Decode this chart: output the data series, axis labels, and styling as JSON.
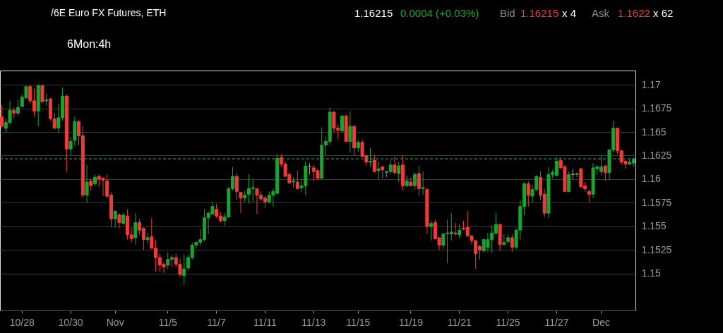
{
  "chart_data": {
    "type": "candlestick",
    "title": "/6E Euro FX Futures, ETH",
    "annotations": [
      "1.16215",
      "0.0004 (+0.03%)",
      "Bid",
      "1.16215",
      "x 4",
      "Ask",
      "1.1622",
      "x 62",
      "6Mon:4h"
    ],
    "categories": [
      null,
      null,
      null,
      null,
      null,
      "10/28",
      null,
      null,
      null,
      null,
      null,
      null,
      null,
      null,
      null,
      null,
      null,
      "10/30",
      null,
      null,
      null,
      null,
      null,
      null,
      null,
      null,
      null,
      null,
      "Nov",
      null,
      null,
      null,
      null,
      null,
      null,
      null,
      null,
      null,
      null,
      null,
      null,
      "11/5",
      null,
      null,
      null,
      null,
      null,
      null,
      null,
      null,
      null,
      null,
      null,
      "11/7",
      null,
      null,
      null,
      null,
      null,
      null,
      null,
      null,
      null,
      null,
      null,
      "11/11",
      null,
      null,
      null,
      null,
      null,
      null,
      null,
      null,
      null,
      null,
      null,
      "11/13",
      null,
      null,
      null,
      null,
      null,
      null,
      null,
      null,
      null,
      null,
      "11/15",
      null,
      null,
      null,
      null,
      null,
      null,
      null,
      null,
      null,
      null,
      null,
      null,
      "11/19",
      null,
      null,
      null,
      null,
      null,
      null,
      null,
      null,
      null,
      null,
      null,
      "11/21",
      null,
      null,
      null,
      null,
      null,
      null,
      null,
      null,
      null,
      null,
      null,
      "11/25",
      null,
      null,
      null,
      null,
      null,
      null,
      null,
      null,
      null,
      null,
      null,
      "11/27",
      null,
      null,
      null,
      null,
      null,
      null,
      null,
      null,
      null,
      null,
      "Dec",
      null,
      null,
      null,
      null,
      null,
      null,
      null,
      null
    ],
    "ohlc": [
      [
        1.1666,
        1.1678,
        1.1655,
        1.1656
      ],
      [
        1.1654,
        1.1664,
        1.1649,
        1.166
      ],
      [
        1.166,
        1.1683,
        1.1658,
        1.1673
      ],
      [
        1.1673,
        1.1676,
        1.1664,
        1.167
      ],
      [
        1.167,
        1.1684,
        1.1667,
        1.1676
      ],
      [
        1.1677,
        1.169,
        1.1676,
        1.1687
      ],
      [
        1.1686,
        1.1699,
        1.1685,
        1.1698
      ],
      [
        1.1698,
        1.17,
        1.168,
        1.1683
      ],
      [
        1.1683,
        1.1696,
        1.1666,
        1.1672
      ],
      [
        1.1672,
        1.17,
        1.1656,
        1.1699
      ],
      [
        1.1699,
        1.17,
        1.1682,
        1.1682
      ],
      [
        1.1683,
        1.1691,
        1.1678,
        1.1684
      ],
      [
        1.1685,
        1.1686,
        1.1662,
        1.1664
      ],
      [
        1.1664,
        1.167,
        1.1653,
        1.1654
      ],
      [
        1.1654,
        1.168,
        1.1649,
        1.1665
      ],
      [
        1.1665,
        1.1697,
        1.1662,
        1.1688
      ],
      [
        1.1688,
        1.169,
        1.1608,
        1.1632
      ],
      [
        1.1632,
        1.1644,
        1.1625,
        1.164
      ],
      [
        1.1641,
        1.1666,
        1.1635,
        1.1661
      ],
      [
        1.1661,
        1.1663,
        1.1636,
        1.1646
      ],
      [
        1.1646,
        1.1657,
        1.158,
        1.1583
      ],
      [
        1.1583,
        1.1615,
        1.1575,
        1.1597
      ],
      [
        1.1598,
        1.1601,
        1.1588,
        1.1593
      ],
      [
        1.1595,
        1.1605,
        1.1593,
        1.1602
      ],
      [
        1.1603,
        1.1605,
        1.1592,
        1.16
      ],
      [
        1.1601,
        1.1602,
        1.1582,
        1.1599
      ],
      [
        1.1598,
        1.1605,
        1.158,
        1.1582
      ],
      [
        1.1583,
        1.1586,
        1.1549,
        1.1558
      ],
      [
        1.1558,
        1.1567,
        1.1549,
        1.1566
      ],
      [
        1.1562,
        1.1564,
        1.1548,
        1.1554
      ],
      [
        1.1553,
        1.1564,
        1.1552,
        1.1562
      ],
      [
        1.1561,
        1.1568,
        1.1536,
        1.1541
      ],
      [
        1.1541,
        1.1549,
        1.1533,
        1.1537
      ],
      [
        1.1538,
        1.1564,
        1.1531,
        1.1554
      ],
      [
        1.1554,
        1.1558,
        1.1541,
        1.1546
      ],
      [
        1.1548,
        1.1549,
        1.1525,
        1.1536
      ],
      [
        1.1536,
        1.1543,
        1.1532,
        1.1538
      ],
      [
        1.1539,
        1.1559,
        1.1526,
        1.1527
      ],
      [
        1.1527,
        1.1536,
        1.1502,
        1.1517
      ],
      [
        1.1517,
        1.1521,
        1.1502,
        1.1509
      ],
      [
        1.151,
        1.1512,
        1.1501,
        1.1507
      ],
      [
        1.1509,
        1.1523,
        1.1505,
        1.1515
      ],
      [
        1.1515,
        1.152,
        1.1507,
        1.1517
      ],
      [
        1.1517,
        1.1521,
        1.1507,
        1.151
      ],
      [
        1.151,
        1.1516,
        1.1496,
        1.1499
      ],
      [
        1.1498,
        1.152,
        1.1488,
        1.1505
      ],
      [
        1.1506,
        1.152,
        1.1504,
        1.1517
      ],
      [
        1.1517,
        1.1533,
        1.1515,
        1.153
      ],
      [
        1.153,
        1.1534,
        1.1527,
        1.1533
      ],
      [
        1.1533,
        1.1547,
        1.153,
        1.1536
      ],
      [
        1.1536,
        1.1568,
        1.1534,
        1.1559
      ],
      [
        1.1559,
        1.1566,
        1.1542,
        1.1564
      ],
      [
        1.1563,
        1.1576,
        1.1563,
        1.1571
      ],
      [
        1.1568,
        1.1574,
        1.1559,
        1.1561
      ],
      [
        1.1561,
        1.1565,
        1.1554,
        1.1556
      ],
      [
        1.1556,
        1.1564,
        1.1551,
        1.156
      ],
      [
        1.156,
        1.1592,
        1.1559,
        1.159
      ],
      [
        1.159,
        1.1613,
        1.1588,
        1.1603
      ],
      [
        1.1603,
        1.1606,
        1.1578,
        1.1587
      ],
      [
        1.1586,
        1.1586,
        1.1564,
        1.158
      ],
      [
        1.158,
        1.1588,
        1.1576,
        1.1583
      ],
      [
        1.1584,
        1.1605,
        1.1574,
        1.159
      ],
      [
        1.159,
        1.16,
        1.1576,
        1.1591
      ],
      [
        1.159,
        1.159,
        1.1563,
        1.1583
      ],
      [
        1.1583,
        1.1587,
        1.1577,
        1.1579
      ],
      [
        1.158,
        1.1582,
        1.1569,
        1.1576
      ],
      [
        1.1576,
        1.1587,
        1.1574,
        1.1583
      ],
      [
        1.1583,
        1.159,
        1.1571,
        1.1587
      ],
      [
        1.1585,
        1.1627,
        1.1584,
        1.1622
      ],
      [
        1.1623,
        1.1627,
        1.1613,
        1.1616
      ],
      [
        1.1616,
        1.1618,
        1.1602,
        1.1603
      ],
      [
        1.1605,
        1.1607,
        1.1595,
        1.1596
      ],
      [
        1.1597,
        1.1602,
        1.1591,
        1.1598
      ],
      [
        1.1597,
        1.1609,
        1.1589,
        1.159
      ],
      [
        1.1591,
        1.1601,
        1.1586,
        1.1593
      ],
      [
        1.1593,
        1.1619,
        1.1583,
        1.1614
      ],
      [
        1.1613,
        1.1617,
        1.1605,
        1.1613
      ],
      [
        1.1612,
        1.1615,
        1.1598,
        1.1608
      ],
      [
        1.1609,
        1.1611,
        1.1599,
        1.1601
      ],
      [
        1.1601,
        1.1655,
        1.16,
        1.1636
      ],
      [
        1.1636,
        1.1645,
        1.1625,
        1.164
      ],
      [
        1.164,
        1.1676,
        1.1636,
        1.1671
      ],
      [
        1.1671,
        1.1672,
        1.165,
        1.1654
      ],
      [
        1.1654,
        1.1658,
        1.1642,
        1.1652
      ],
      [
        1.1651,
        1.1667,
        1.1649,
        1.1667
      ],
      [
        1.1667,
        1.1668,
        1.1639,
        1.164
      ],
      [
        1.164,
        1.1672,
        1.1628,
        1.1656
      ],
      [
        1.1656,
        1.1657,
        1.1625,
        1.1633
      ],
      [
        1.1633,
        1.1642,
        1.1629,
        1.1639
      ],
      [
        1.1639,
        1.1642,
        1.1623,
        1.1624
      ],
      [
        1.1625,
        1.1625,
        1.1614,
        1.1618
      ],
      [
        1.1618,
        1.1633,
        1.1613,
        1.1619
      ],
      [
        1.162,
        1.1626,
        1.1607,
        1.1608
      ],
      [
        1.1609,
        1.1619,
        1.16,
        1.1611
      ],
      [
        1.1613,
        1.1614,
        1.1601,
        1.161
      ],
      [
        1.1607,
        1.1609,
        1.1602,
        1.1608
      ],
      [
        1.1608,
        1.1621,
        1.1605,
        1.1615
      ],
      [
        1.1615,
        1.1624,
        1.1605,
        1.1607
      ],
      [
        1.1606,
        1.1618,
        1.1597,
        1.1614
      ],
      [
        1.1615,
        1.1625,
        1.1588,
        1.1593
      ],
      [
        1.1593,
        1.1604,
        1.1592,
        1.1598
      ],
      [
        1.1597,
        1.1602,
        1.1592,
        1.1593
      ],
      [
        1.1593,
        1.1607,
        1.1589,
        1.1605
      ],
      [
        1.1606,
        1.1614,
        1.1582,
        1.159
      ],
      [
        1.159,
        1.1608,
        1.1583,
        1.1591
      ],
      [
        1.1589,
        1.1591,
        1.1542,
        1.155
      ],
      [
        1.155,
        1.1556,
        1.1535,
        1.1553
      ],
      [
        1.1554,
        1.1557,
        1.1536,
        1.1537
      ],
      [
        1.1538,
        1.1538,
        1.1525,
        1.153
      ],
      [
        1.153,
        1.1543,
        1.1526,
        1.1542
      ],
      [
        1.1542,
        1.1557,
        1.1511,
        1.1543
      ],
      [
        1.1542,
        1.1564,
        1.1535,
        1.1544
      ],
      [
        1.1543,
        1.1554,
        1.154,
        1.1542
      ],
      [
        1.1541,
        1.1552,
        1.1537,
        1.1546
      ],
      [
        1.1548,
        1.1556,
        1.1546,
        1.1547
      ],
      [
        1.1549,
        1.1566,
        1.1539,
        1.154
      ],
      [
        1.154,
        1.1541,
        1.1531,
        1.1535
      ],
      [
        1.1535,
        1.1535,
        1.1505,
        1.1521
      ],
      [
        1.1529,
        1.153,
        1.1515,
        1.1525
      ],
      [
        1.1524,
        1.1537,
        1.1522,
        1.1536
      ],
      [
        1.1528,
        1.1543,
        1.1523,
        1.1536
      ],
      [
        1.1536,
        1.1551,
        1.1522,
        1.1543
      ],
      [
        1.1543,
        1.1564,
        1.1541,
        1.1552
      ],
      [
        1.1552,
        1.1553,
        1.1524,
        1.1531
      ],
      [
        1.1531,
        1.1542,
        1.153,
        1.1533
      ],
      [
        1.1534,
        1.1542,
        1.1532,
        1.1538
      ],
      [
        1.1538,
        1.1542,
        1.1523,
        1.1528
      ],
      [
        1.1528,
        1.1548,
        1.1526,
        1.1546
      ],
      [
        1.1546,
        1.1578,
        1.1536,
        1.1571
      ],
      [
        1.1571,
        1.1597,
        1.1562,
        1.1595
      ],
      [
        1.1595,
        1.1598,
        1.1571,
        1.1583
      ],
      [
        1.1582,
        1.1594,
        1.1575,
        1.1589
      ],
      [
        1.1589,
        1.1604,
        1.1587,
        1.1603
      ],
      [
        1.1602,
        1.1608,
        1.1578,
        1.1583
      ],
      [
        1.1584,
        1.159,
        1.156,
        1.1564
      ],
      [
        1.1564,
        1.1613,
        1.1559,
        1.1605
      ],
      [
        1.1605,
        1.161,
        1.1601,
        1.1607
      ],
      [
        1.1604,
        1.1623,
        1.1603,
        1.1619
      ],
      [
        1.162,
        1.1623,
        1.1611,
        1.1612
      ],
      [
        1.1613,
        1.1615,
        1.1586,
        1.1587
      ],
      [
        1.1587,
        1.1608,
        1.1586,
        1.1605
      ],
      [
        1.1605,
        1.1611,
        1.16,
        1.1605
      ],
      [
        1.1605,
        1.1607,
        1.1602,
        1.1606
      ],
      [
        1.1611,
        1.1612,
        1.1591,
        1.1592
      ],
      [
        1.1593,
        1.1597,
        1.1587,
        1.159
      ],
      [
        1.1587,
        1.1589,
        1.1576,
        1.1584
      ],
      [
        1.1584,
        1.1617,
        1.158,
        1.1612
      ],
      [
        1.1611,
        1.1615,
        1.1605,
        1.1613
      ],
      [
        1.1608,
        1.1625,
        1.1605,
        1.1613
      ],
      [
        1.1614,
        1.1615,
        1.1598,
        1.1607
      ],
      [
        1.1607,
        1.1632,
        1.1599,
        1.1631
      ],
      [
        1.1631,
        1.1662,
        1.1629,
        1.1654
      ],
      [
        1.1654,
        1.1654,
        1.1627,
        1.163
      ],
      [
        1.163,
        1.1631,
        1.1615,
        1.1618
      ],
      [
        1.1619,
        1.162,
        1.1611,
        1.1616
      ],
      [
        1.1616,
        1.1621,
        1.1615,
        1.1618
      ],
      [
        1.1617,
        1.1623,
        1.1613,
        1.1621
      ]
    ],
    "colors": [
      "#f23a3a",
      "#1ba332",
      "#1ba332",
      "#f23a3a",
      "#1ba332",
      "#1ba332",
      "#1ba332",
      "#f23a3a",
      "#f23a3a",
      "#1ba332",
      "#f23a3a",
      "#1ba332",
      "#f23a3a",
      "#f23a3a",
      "#1ba332",
      "#1ba332",
      "#f23a3a",
      "#1ba332",
      "#1ba332",
      "#f23a3a",
      "#f23a3a",
      "#1ba332",
      "#f23a3a",
      "#1ba332",
      "#f23a3a",
      "#f23a3a",
      "#f23a3a",
      "#f23a3a",
      "#1ba332",
      "#f23a3a",
      "#1ba332",
      "#f23a3a",
      "#f23a3a",
      "#1ba332",
      "#f23a3a",
      "#f23a3a",
      "#1ba332",
      "#f23a3a",
      "#f23a3a",
      "#f23a3a",
      "#f23a3a",
      "#1ba332",
      "#1ba332",
      "#f23a3a",
      "#f23a3a",
      "#1ba332",
      "#1ba332",
      "#1ba332",
      "#1ba332",
      "#1ba332",
      "#1ba332",
      "#1ba332",
      "#1ba332",
      "#f23a3a",
      "#f23a3a",
      "#1ba332",
      "#1ba332",
      "#1ba332",
      "#f23a3a",
      "#f23a3a",
      "#1ba332",
      "#1ba332",
      "#1ba332",
      "#f23a3a",
      "#f23a3a",
      "#f23a3a",
      "#1ba332",
      "#1ba332",
      "#1ba332",
      "#f23a3a",
      "#f23a3a",
      "#f23a3a",
      "#1ba332",
      "#f23a3a",
      "#1ba332",
      "#1ba332",
      "#a0a0a0",
      "#f23a3a",
      "#f23a3a",
      "#1ba332",
      "#1ba332",
      "#1ba332",
      "#f23a3a",
      "#f23a3a",
      "#1ba332",
      "#f23a3a",
      "#1ba332",
      "#f23a3a",
      "#1ba332",
      "#f23a3a",
      "#f23a3a",
      "#1ba332",
      "#f23a3a",
      "#1ba332",
      "#f23a3a",
      "#1ba332",
      "#1ba332",
      "#f23a3a",
      "#1ba332",
      "#f23a3a",
      "#1ba332",
      "#f23a3a",
      "#1ba332",
      "#f23a3a",
      "#1ba332",
      "#f23a3a",
      "#1ba332",
      "#f23a3a",
      "#f23a3a",
      "#1ba332",
      "#1ba332",
      "#1ba332",
      "#f23a3a",
      "#1ba332",
      "#f23a3a",
      "#f23a3a",
      "#f23a3a",
      "#f23a3a",
      "#f23a3a",
      "#1ba332",
      "#1ba332",
      "#1ba332",
      "#1ba332",
      "#f23a3a",
      "#1ba332",
      "#1ba332",
      "#f23a3a",
      "#1ba332",
      "#1ba332",
      "#1ba332",
      "#f23a3a",
      "#1ba332",
      "#1ba332",
      "#f23a3a",
      "#f23a3a",
      "#1ba332",
      "#1ba332",
      "#1ba332",
      "#f23a3a",
      "#f23a3a",
      "#1ba332",
      "#a0a0a0",
      "#1ba332",
      "#f23a3a",
      "#f23a3a",
      "#f23a3a",
      "#1ba332",
      "#1ba332",
      "#1ba332",
      "#f23a3a",
      "#1ba332",
      "#1ba332",
      "#f23a3a",
      "#f23a3a",
      "#f23a3a",
      "#1ba332",
      "#1ba332"
    ],
    "ylim": [
      1.1461,
      1.1715
    ],
    "yticks": [
      1.15,
      1.1525,
      1.155,
      1.1575,
      1.16,
      1.1625,
      1.165,
      1.1675,
      1.17
    ],
    "grid": "y",
    "tick_labels": true,
    "ref_lines": [
      {
        "axis": "y",
        "value": 1.16215,
        "color": "#1ba332",
        "line_style": "dashed"
      }
    ]
  }
}
